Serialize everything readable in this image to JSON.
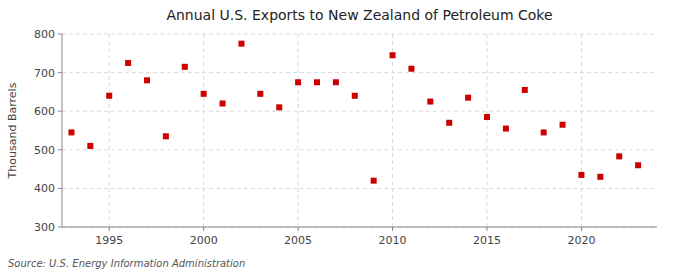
{
  "chart_data": {
    "type": "scatter",
    "title": "Annual U.S. Exports to New Zealand of Petroleum Coke",
    "ylabel": "Thousand Barrels",
    "annotations": [
      "Source: U.S. Energy Information Administration"
    ],
    "x": [
      1993,
      1994,
      1995,
      1996,
      1997,
      1998,
      1999,
      2000,
      2001,
      2002,
      2003,
      2004,
      2005,
      2006,
      2007,
      2008,
      2009,
      2010,
      2011,
      2012,
      2013,
      2014,
      2015,
      2016,
      2017,
      2018,
      2019,
      2020,
      2021,
      2022,
      2023
    ],
    "values": [
      545,
      510,
      640,
      725,
      680,
      535,
      715,
      645,
      620,
      775,
      645,
      610,
      675,
      675,
      675,
      640,
      420,
      745,
      710,
      625,
      570,
      635,
      585,
      555,
      655,
      545,
      565,
      435,
      430,
      483,
      460
    ],
    "color": "#cc0000",
    "marker": "square",
    "xlim": [
      1992.5,
      2024
    ],
    "ylim": [
      300,
      800
    ],
    "xticks": [
      1995,
      2000,
      2005,
      2010,
      2015,
      2020
    ],
    "yticks": [
      300,
      400,
      500,
      600,
      700,
      800
    ],
    "grid": true
  }
}
